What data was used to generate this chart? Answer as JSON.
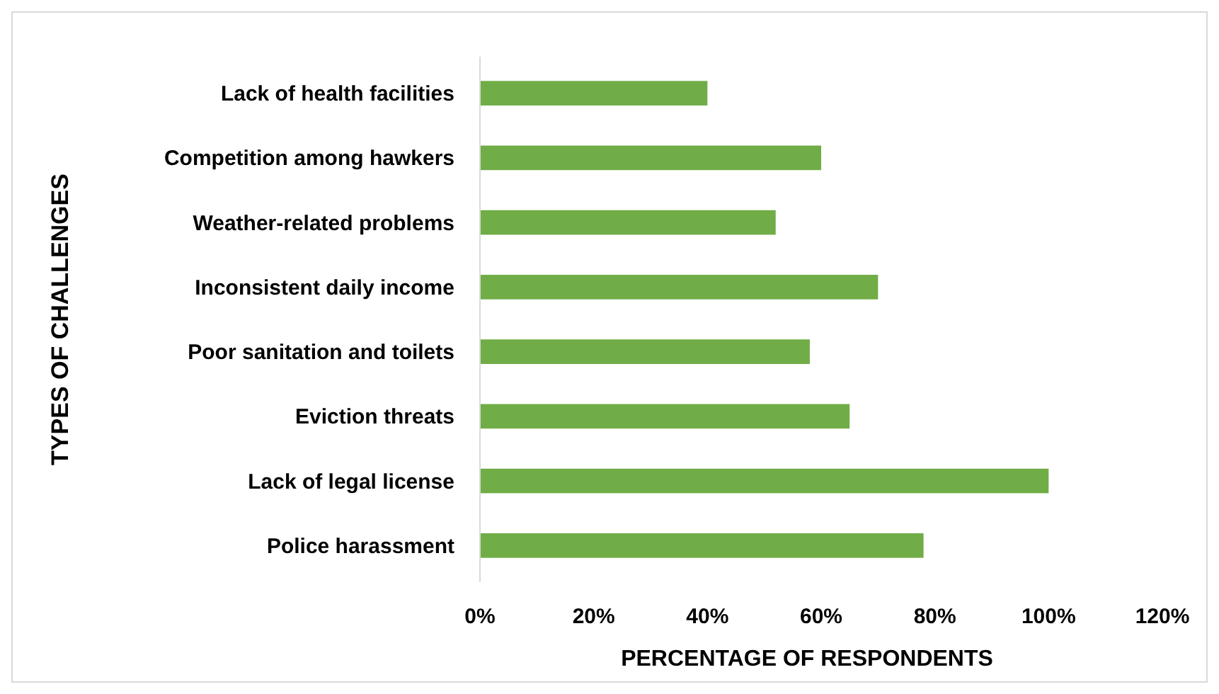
{
  "chart_data": {
    "type": "bar",
    "orientation": "horizontal",
    "xlabel": "PERCENTAGE OF RESPONDENTS",
    "ylabel": "TYPES OF CHALLENGES",
    "categories": [
      "Lack of health facilities",
      "Competition among hawkers",
      "Weather-related problems",
      "Inconsistent daily income",
      "Poor sanitation and toilets",
      "Eviction threats",
      "Lack of legal license",
      "Police harassment"
    ],
    "values": [
      40,
      60,
      52,
      70,
      58,
      65,
      100,
      78
    ],
    "color": "#70ad47",
    "xlim": [
      0,
      120
    ],
    "xticks": [
      {
        "value": 0,
        "label": "0%"
      },
      {
        "value": 20,
        "label": "20%"
      },
      {
        "value": 40,
        "label": "40%"
      },
      {
        "value": 60,
        "label": "60%"
      },
      {
        "value": 80,
        "label": "80%"
      },
      {
        "value": 100,
        "label": "100%"
      },
      {
        "value": 120,
        "label": "120%"
      }
    ],
    "grid": false
  }
}
